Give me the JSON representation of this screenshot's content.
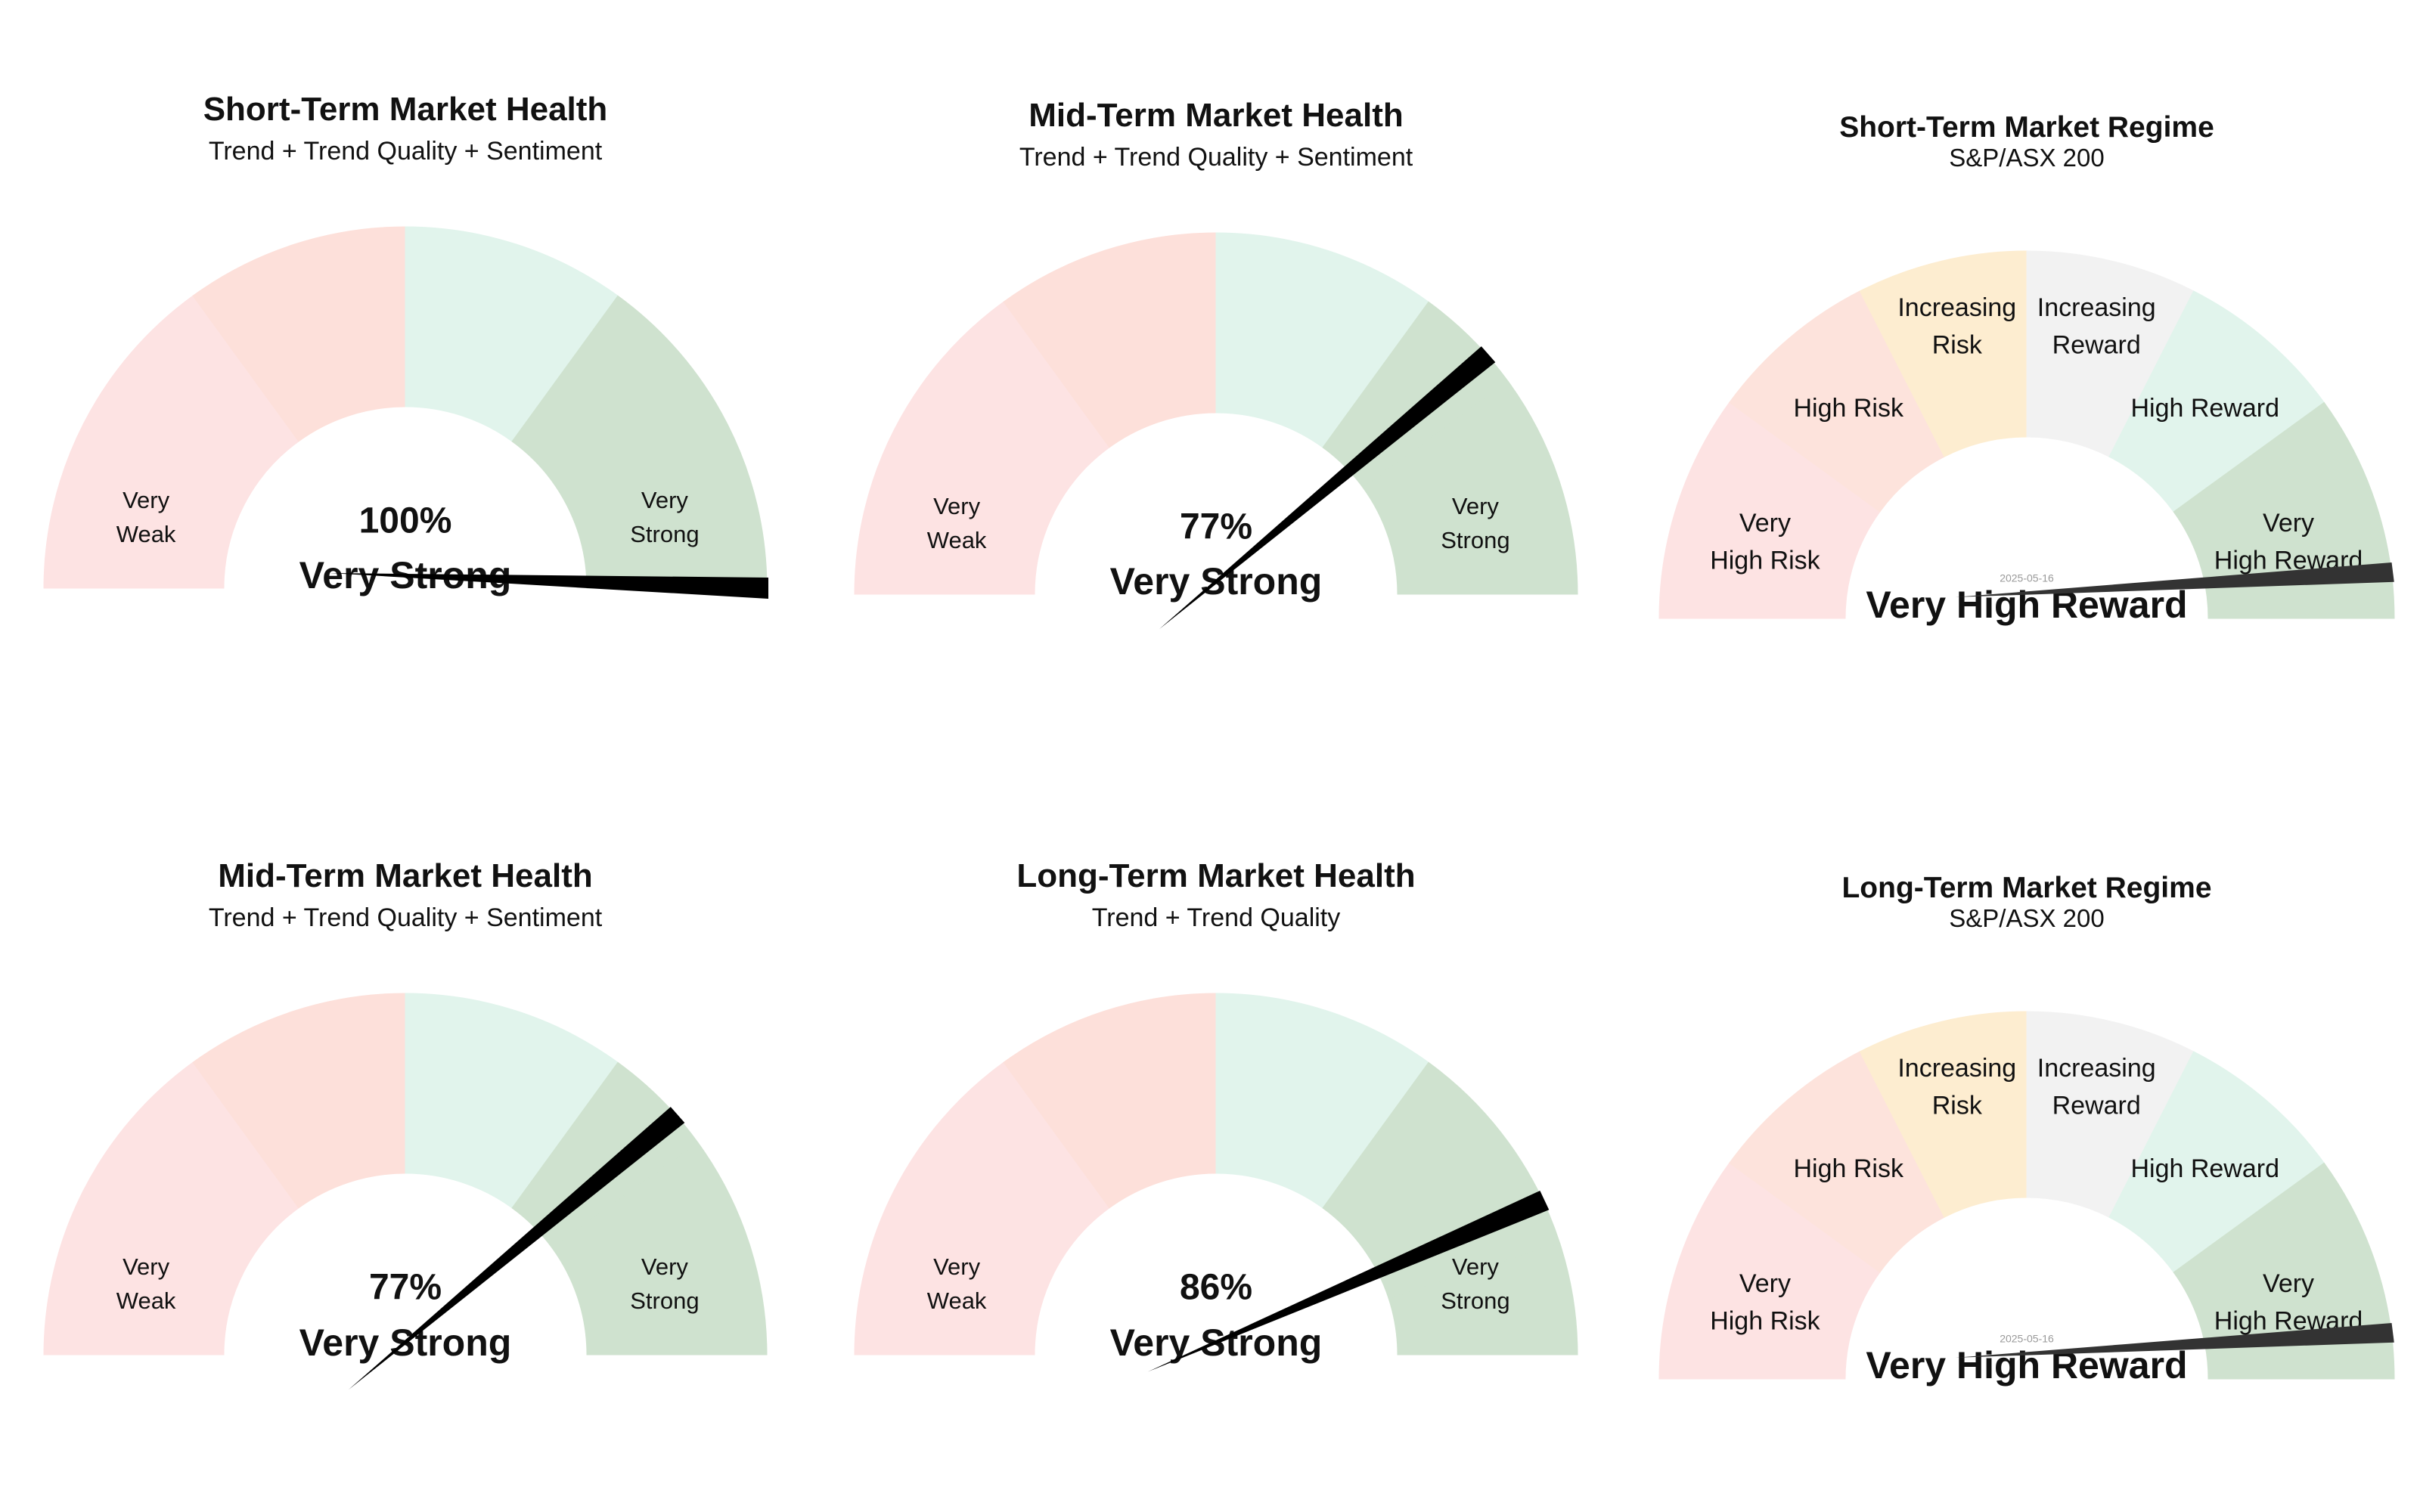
{
  "chart_data": [
    {
      "type": "gauge",
      "title": "Short-Term Market Health",
      "subtitle": "Trend + Trend Quality + Sentiment",
      "value": 100,
      "value_label": "100%",
      "status_label": "Very Strong",
      "range": [
        0,
        100
      ],
      "bands": [
        {
          "from": 0,
          "to": 30,
          "color": "#fde3e3",
          "label": [
            "Very",
            "Weak"
          ]
        },
        {
          "from": 30,
          "to": 50,
          "color": "#fde0da",
          "label": []
        },
        {
          "from": 50,
          "to": 70,
          "color": "#e1f4ec",
          "label": []
        },
        {
          "from": 70,
          "to": 100,
          "color": "#cfe2cf",
          "label": [
            "Very",
            "Strong"
          ]
        }
      ]
    },
    {
      "type": "gauge",
      "title": "Mid-Term Market Health",
      "subtitle": "Trend + Trend Quality + Sentiment",
      "value": 77,
      "value_label": "77%",
      "status_label": "Very Strong",
      "range": [
        0,
        100
      ],
      "bands": [
        {
          "from": 0,
          "to": 30,
          "color": "#fde3e3",
          "label": [
            "Very",
            "Weak"
          ]
        },
        {
          "from": 30,
          "to": 50,
          "color": "#fde0da",
          "label": []
        },
        {
          "from": 50,
          "to": 70,
          "color": "#e1f4ec",
          "label": []
        },
        {
          "from": 70,
          "to": 80,
          "color": "#cfe2cf",
          "label": []
        },
        {
          "from": 80,
          "to": 100,
          "color": "#cfe2cf",
          "label": [
            "Very",
            "Strong"
          ]
        }
      ]
    },
    {
      "type": "gauge",
      "title": "Short-Term Market Regime",
      "subtitle": "S&P/ASX 200",
      "date": "2025-05-16",
      "value": 96,
      "status_label": "Very High Reward",
      "range": [
        0,
        100
      ],
      "bands": [
        {
          "from": 0,
          "to": 20,
          "color": "#fde3e3",
          "label": [
            "Very",
            "High Risk"
          ]
        },
        {
          "from": 20,
          "to": 35,
          "color": "#fde3dc",
          "label": [
            "High Risk"
          ]
        },
        {
          "from": 35,
          "to": 50,
          "color": "#fdedd0",
          "label": [
            "Increasing",
            "Risk"
          ]
        },
        {
          "from": 50,
          "to": 65,
          "color": "#f2f2f2",
          "label": [
            "Increasing",
            "Reward"
          ]
        },
        {
          "from": 65,
          "to": 80,
          "color": "#e1f4ec",
          "label": [
            "High Reward"
          ]
        },
        {
          "from": 80,
          "to": 100,
          "color": "#cfe2cf",
          "label": [
            "Very",
            "High Reward"
          ]
        }
      ]
    },
    {
      "type": "gauge",
      "title": "Mid-Term Market Health",
      "subtitle": "Trend + Trend Quality + Sentiment",
      "value": 77,
      "value_label": "77%",
      "status_label": "Very Strong",
      "range": [
        0,
        100
      ],
      "bands": [
        {
          "from": 0,
          "to": 30,
          "color": "#fde3e3",
          "label": [
            "Very",
            "Weak"
          ]
        },
        {
          "from": 30,
          "to": 50,
          "color": "#fde0da",
          "label": []
        },
        {
          "from": 50,
          "to": 70,
          "color": "#e1f4ec",
          "label": []
        },
        {
          "from": 70,
          "to": 80,
          "color": "#cfe2cf",
          "label": []
        },
        {
          "from": 80,
          "to": 100,
          "color": "#cfe2cf",
          "label": [
            "Very",
            "Strong"
          ]
        }
      ]
    },
    {
      "type": "gauge",
      "title": "Long-Term Market Health",
      "subtitle": "Trend + Trend Quality",
      "value": 86,
      "value_label": "86%",
      "status_label": "Very Strong",
      "range": [
        0,
        100
      ],
      "bands": [
        {
          "from": 0,
          "to": 30,
          "color": "#fde3e3",
          "label": [
            "Very",
            "Weak"
          ]
        },
        {
          "from": 30,
          "to": 50,
          "color": "#fde0da",
          "label": []
        },
        {
          "from": 50,
          "to": 70,
          "color": "#e1f4ec",
          "label": []
        },
        {
          "from": 70,
          "to": 90,
          "color": "#cfe2cf",
          "label": []
        },
        {
          "from": 90,
          "to": 100,
          "color": "#cfe2cf",
          "label": [
            "Very",
            "Strong"
          ]
        }
      ]
    },
    {
      "type": "gauge",
      "title": "Long-Term Market Regime",
      "subtitle": "S&P/ASX 200",
      "date": "2025-05-16",
      "value": 96,
      "status_label": "Very High Reward",
      "range": [
        0,
        100
      ],
      "bands": [
        {
          "from": 0,
          "to": 20,
          "color": "#fde3e3",
          "label": [
            "Very",
            "High Risk"
          ]
        },
        {
          "from": 20,
          "to": 35,
          "color": "#fde3dc",
          "label": [
            "High Risk"
          ]
        },
        {
          "from": 35,
          "to": 50,
          "color": "#fdedd0",
          "label": [
            "Increasing",
            "Risk"
          ]
        },
        {
          "from": 50,
          "to": 65,
          "color": "#f2f2f2",
          "label": [
            "Increasing",
            "Reward"
          ]
        },
        {
          "from": 65,
          "to": 80,
          "color": "#e1f4ec",
          "label": [
            "High Reward"
          ]
        },
        {
          "from": 80,
          "to": 100,
          "color": "#cfe2cf",
          "label": [
            "Very",
            "High Reward"
          ]
        }
      ]
    }
  ],
  "colors": {
    "needle_health": "#000000",
    "needle_regime": "#333333",
    "text": "#111111",
    "date_text": "#9a9a9a"
  }
}
